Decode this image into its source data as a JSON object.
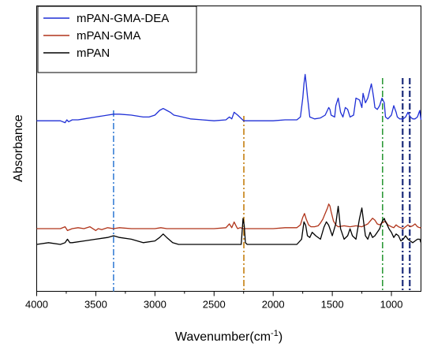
{
  "chart_data": {
    "type": "line",
    "title": "",
    "xlabel": "Wavenumber(cm",
    "xlabel_sup": "-1",
    "xlabel_close": ")",
    "ylabel": "Absorbance",
    "xlim": [
      4000,
      750
    ],
    "x_reversed": true,
    "x_ticks": [
      4000,
      3500,
      3000,
      2500,
      2000,
      1500,
      1000
    ],
    "y_ticks_shown": false,
    "grid": false,
    "legend_position": "top-left",
    "series": [
      {
        "name": "mPAN-GMA-DEA",
        "color": "#1f2fd6",
        "x": [
          4000,
          3900,
          3800,
          3760,
          3745,
          3730,
          3700,
          3650,
          3600,
          3500,
          3400,
          3350,
          3300,
          3200,
          3100,
          3050,
          3000,
          2960,
          2930,
          2900,
          2870,
          2840,
          2800,
          2700,
          2600,
          2500,
          2400,
          2370,
          2350,
          2330,
          2300,
          2250,
          2200,
          2100,
          2000,
          1900,
          1800,
          1770,
          1750,
          1740,
          1730,
          1720,
          1710,
          1690,
          1650,
          1600,
          1560,
          1530,
          1520,
          1510,
          1480,
          1470,
          1450,
          1430,
          1410,
          1390,
          1370,
          1350,
          1320,
          1300,
          1270,
          1250,
          1240,
          1220,
          1200,
          1190,
          1170,
          1160,
          1150,
          1140,
          1120,
          1100,
          1080,
          1060,
          1050,
          1030,
          1000,
          980,
          960,
          950,
          930,
          900,
          880,
          860,
          840,
          820,
          800,
          780,
          760,
          750
        ],
        "y": [
          0.46,
          0.46,
          0.46,
          0.44,
          0.47,
          0.45,
          0.47,
          0.47,
          0.48,
          0.5,
          0.52,
          0.53,
          0.53,
          0.52,
          0.5,
          0.5,
          0.52,
          0.57,
          0.59,
          0.57,
          0.55,
          0.52,
          0.51,
          0.48,
          0.47,
          0.46,
          0.47,
          0.5,
          0.48,
          0.55,
          0.52,
          0.46,
          0.46,
          0.46,
          0.46,
          0.47,
          0.47,
          0.5,
          0.7,
          0.85,
          0.95,
          0.85,
          0.72,
          0.5,
          0.48,
          0.49,
          0.52,
          0.6,
          0.58,
          0.52,
          0.5,
          0.62,
          0.7,
          0.55,
          0.5,
          0.6,
          0.58,
          0.5,
          0.52,
          0.7,
          0.68,
          0.6,
          0.75,
          0.65,
          0.7,
          0.75,
          0.85,
          0.78,
          0.7,
          0.6,
          0.58,
          0.62,
          0.7,
          0.65,
          0.5,
          0.48,
          0.52,
          0.62,
          0.55,
          0.5,
          0.48,
          0.48,
          0.5,
          0.55,
          0.5,
          0.48,
          0.48,
          0.5,
          0.57,
          0.47
        ]
      },
      {
        "name": "mPAN-GMA",
        "color": "#b0341a",
        "x": [
          4000,
          3900,
          3800,
          3760,
          3740,
          3700,
          3650,
          3600,
          3550,
          3500,
          3480,
          3450,
          3400,
          3350,
          3300,
          3200,
          3100,
          3000,
          2950,
          2900,
          2800,
          2700,
          2600,
          2500,
          2400,
          2370,
          2350,
          2330,
          2310,
          2300,
          2280,
          2250,
          2200,
          2100,
          2000,
          1900,
          1800,
          1770,
          1750,
          1735,
          1720,
          1700,
          1680,
          1650,
          1620,
          1600,
          1580,
          1560,
          1540,
          1530,
          1520,
          1510,
          1490,
          1470,
          1450,
          1400,
          1350,
          1300,
          1250,
          1200,
          1180,
          1160,
          1140,
          1120,
          1100,
          1080,
          1050,
          1030,
          1000,
          980,
          960,
          940,
          920,
          900,
          880,
          860,
          840,
          820,
          800,
          780,
          760,
          750
        ],
        "y": [
          0.2,
          0.2,
          0.2,
          0.22,
          0.18,
          0.2,
          0.21,
          0.2,
          0.22,
          0.18,
          0.2,
          0.19,
          0.21,
          0.2,
          0.21,
          0.2,
          0.2,
          0.2,
          0.21,
          0.2,
          0.2,
          0.2,
          0.2,
          0.2,
          0.21,
          0.25,
          0.21,
          0.27,
          0.22,
          0.2,
          0.21,
          0.2,
          0.2,
          0.2,
          0.2,
          0.21,
          0.21,
          0.24,
          0.32,
          0.36,
          0.3,
          0.24,
          0.22,
          0.22,
          0.23,
          0.26,
          0.3,
          0.36,
          0.42,
          0.46,
          0.44,
          0.38,
          0.28,
          0.24,
          0.22,
          0.23,
          0.22,
          0.23,
          0.22,
          0.25,
          0.28,
          0.31,
          0.29,
          0.25,
          0.24,
          0.26,
          0.28,
          0.24,
          0.22,
          0.21,
          0.24,
          0.22,
          0.21,
          0.2,
          0.22,
          0.24,
          0.22,
          0.23,
          0.25,
          0.22,
          0.21,
          0.21
        ]
      },
      {
        "name": "mPAN",
        "color": "#000000",
        "x": [
          4000,
          3900,
          3800,
          3760,
          3740,
          3720,
          3700,
          3600,
          3500,
          3400,
          3350,
          3300,
          3200,
          3100,
          3000,
          2960,
          2930,
          2900,
          2850,
          2800,
          2700,
          2600,
          2500,
          2400,
          2300,
          2270,
          2255,
          2245,
          2235,
          2220,
          2200,
          2100,
          2000,
          1900,
          1800,
          1760,
          1740,
          1725,
          1710,
          1690,
          1670,
          1640,
          1600,
          1570,
          1550,
          1530,
          1500,
          1470,
          1450,
          1430,
          1400,
          1370,
          1350,
          1330,
          1300,
          1270,
          1250,
          1235,
          1220,
          1200,
          1180,
          1160,
          1140,
          1120,
          1100,
          1080,
          1060,
          1050,
          1040,
          1020,
          1000,
          980,
          960,
          940,
          920,
          900,
          880,
          860,
          840,
          820,
          800,
          780,
          760,
          750
        ],
        "y": [
          -0.05,
          -0.04,
          -0.05,
          -0.04,
          -0.02,
          -0.04,
          -0.04,
          -0.03,
          -0.02,
          -0.01,
          0.0,
          -0.01,
          -0.02,
          -0.04,
          -0.03,
          -0.01,
          0.01,
          -0.01,
          -0.04,
          -0.05,
          -0.05,
          -0.05,
          -0.05,
          -0.05,
          -0.05,
          -0.05,
          0.1,
          0.06,
          -0.04,
          -0.05,
          -0.05,
          -0.05,
          -0.05,
          -0.05,
          -0.05,
          -0.02,
          0.08,
          0.06,
          0.0,
          -0.01,
          0.02,
          0.0,
          -0.02,
          0.05,
          0.08,
          0.06,
          0.0,
          0.07,
          0.17,
          0.04,
          -0.02,
          0.0,
          0.04,
          0.0,
          -0.02,
          0.1,
          0.16,
          0.08,
          0.0,
          -0.02,
          0.02,
          -0.01,
          0.0,
          0.02,
          0.04,
          0.08,
          0.1,
          0.08,
          0.07,
          0.04,
          0.02,
          -0.01,
          0.01,
          0.0,
          -0.03,
          -0.02,
          0.0,
          -0.02,
          -0.03,
          -0.04,
          -0.03,
          -0.02,
          -0.02,
          -0.04
        ]
      }
    ],
    "reference_lines": [
      {
        "x": 3350,
        "color": "#3a7fd5",
        "style": "dash-dot"
      },
      {
        "x": 2248,
        "color": "#c47e10",
        "style": "dash-dot"
      },
      {
        "x": 1075,
        "color": "#2e9a3a",
        "style": "dash-dot"
      },
      {
        "x": 905,
        "color": "#1a2a7a",
        "style": "dash-dot"
      },
      {
        "x": 845,
        "color": "#1a2a7a",
        "style": "dash-dot"
      }
    ]
  }
}
